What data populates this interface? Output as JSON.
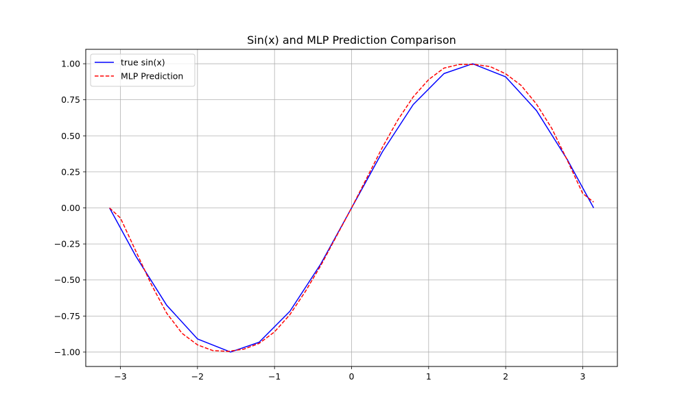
{
  "chart_data": {
    "type": "line",
    "title": "Sin(x) and MLP Prediction Comparison",
    "xlabel": "",
    "ylabel": "",
    "xlim": [
      -3.45,
      3.45
    ],
    "ylim": [
      -1.1,
      1.1
    ],
    "grid": true,
    "legend_position": "upper-left",
    "x_ticks": [
      -3,
      -2,
      -1,
      0,
      1,
      2,
      3
    ],
    "x_tick_labels": [
      "−3",
      "−2",
      "−1",
      "0",
      "1",
      "2",
      "3"
    ],
    "y_ticks": [
      -1.0,
      -0.75,
      -0.5,
      -0.25,
      0.0,
      0.25,
      0.5,
      0.75,
      1.0
    ],
    "y_tick_labels": [
      "−1.00",
      "−0.75",
      "−0.50",
      "−0.25",
      "0.00",
      "0.25",
      "0.50",
      "0.75",
      "1.00"
    ],
    "series": [
      {
        "name": "true sin(x)",
        "color": "#0000ff",
        "style": "solid",
        "x": [
          -3.1416,
          -2.8,
          -2.4,
          -2.0,
          -1.5708,
          -1.2,
          -0.8,
          -0.4,
          0.0,
          0.4,
          0.8,
          1.2,
          1.5708,
          2.0,
          2.4,
          2.8,
          3.1416
        ],
        "y": [
          0.0,
          -0.335,
          -0.675,
          -0.909,
          -1.0,
          -0.932,
          -0.717,
          -0.389,
          0.0,
          0.389,
          0.717,
          0.932,
          1.0,
          0.909,
          0.675,
          0.335,
          0.0
        ]
      },
      {
        "name": "MLP Prediction",
        "color": "#ff0000",
        "style": "dashed",
        "x": [
          -3.1416,
          -3.0,
          -2.8,
          -2.6,
          -2.4,
          -2.2,
          -2.0,
          -1.8,
          -1.6,
          -1.4,
          -1.2,
          -1.0,
          -0.8,
          -0.6,
          -0.4,
          -0.2,
          0.0,
          0.2,
          0.4,
          0.6,
          0.8,
          1.0,
          1.2,
          1.4,
          1.6,
          1.8,
          2.0,
          2.2,
          2.4,
          2.6,
          2.8,
          3.0,
          3.1416
        ],
        "y": [
          0.0,
          -0.07,
          -0.3,
          -0.53,
          -0.73,
          -0.87,
          -0.95,
          -0.99,
          -0.995,
          -0.98,
          -0.94,
          -0.86,
          -0.74,
          -0.58,
          -0.4,
          -0.2,
          0.0,
          0.21,
          0.42,
          0.61,
          0.77,
          0.89,
          0.97,
          0.995,
          0.995,
          0.98,
          0.93,
          0.85,
          0.72,
          0.55,
          0.33,
          0.1,
          0.04
        ]
      }
    ]
  }
}
